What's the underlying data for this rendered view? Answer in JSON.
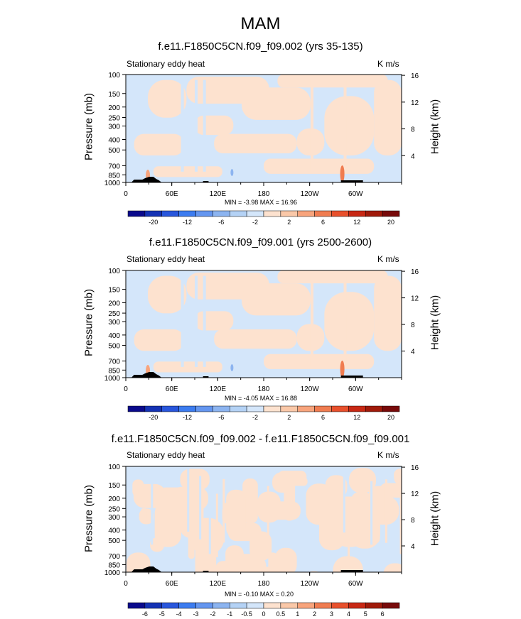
{
  "main_title": "MAM",
  "colors": {
    "neg_light": "#d4e6fa",
    "pos_light": "#fde2cf",
    "terrain": "#000000",
    "frame": "#000000"
  },
  "chart_data": [
    {
      "type": "heatmap",
      "title": "f.e11.F1850C5CN.f09_f09.002 (yrs 35-135)",
      "left_label": "Stationary eddy heat",
      "right_label": "K m/s",
      "ylabel": "Pressure (mb)",
      "ylabel_right": "Height (km)",
      "pressure_ticks": [
        "100",
        "150",
        "200",
        "250",
        "300",
        "400",
        "500",
        "700",
        "850",
        "1000"
      ],
      "height_ticks": [
        "4",
        "8",
        "12",
        "16"
      ],
      "x_ticks": [
        "0",
        "60E",
        "120E",
        "180",
        "120W",
        "60W"
      ],
      "stats_text": "MIN = -3.98  MAX = 16.96",
      "colorbar_labels": [
        "-20",
        "-12",
        "-6",
        "-2",
        "2",
        "6",
        "12",
        "20"
      ],
      "colorbar_colors": [
        "#0a0a8c",
        "#1432b4",
        "#2856dc",
        "#3c7cf0",
        "#6496f0",
        "#8cb4f0",
        "#b4d2f5",
        "#d4e6fa",
        "#fde2cf",
        "#fac8a8",
        "#f8a47c",
        "#f07c50",
        "#e8502c",
        "#c82814",
        "#a01a0a",
        "#780a0a"
      ],
      "value_range": [
        -3.98,
        16.96
      ]
    },
    {
      "type": "heatmap",
      "title": "f.e11.F1850C5CN.f09_f09.001 (yrs 2500-2600)",
      "left_label": "Stationary eddy heat",
      "right_label": "K m/s",
      "ylabel": "Pressure (mb)",
      "ylabel_right": "Height (km)",
      "pressure_ticks": [
        "100",
        "150",
        "200",
        "250",
        "300",
        "400",
        "500",
        "700",
        "850",
        "1000"
      ],
      "height_ticks": [
        "4",
        "8",
        "12",
        "16"
      ],
      "x_ticks": [
        "0",
        "60E",
        "120E",
        "180",
        "120W",
        "60W"
      ],
      "stats_text": "MIN = -4.05  MAX = 16.88",
      "colorbar_labels": [
        "-20",
        "-12",
        "-6",
        "-2",
        "2",
        "6",
        "12",
        "20"
      ],
      "colorbar_colors": [
        "#0a0a8c",
        "#1432b4",
        "#2856dc",
        "#3c7cf0",
        "#6496f0",
        "#8cb4f0",
        "#b4d2f5",
        "#d4e6fa",
        "#fde2cf",
        "#fac8a8",
        "#f8a47c",
        "#f07c50",
        "#e8502c",
        "#c82814",
        "#a01a0a",
        "#780a0a"
      ],
      "value_range": [
        -4.05,
        16.88
      ]
    },
    {
      "type": "heatmap",
      "title": "f.e11.F1850C5CN.f09_f09.002 - f.e11.F1850C5CN.f09_f09.001",
      "left_label": "Stationary eddy heat",
      "right_label": "K m/s",
      "ylabel": "Pressure (mb)",
      "ylabel_right": "Height (km)",
      "pressure_ticks": [
        "100",
        "150",
        "200",
        "250",
        "300",
        "400",
        "500",
        "700",
        "850",
        "1000"
      ],
      "height_ticks": [
        "4",
        "8",
        "12",
        "16"
      ],
      "x_ticks": [
        "0",
        "60E",
        "120E",
        "180",
        "120W",
        "60W"
      ],
      "stats_text": "MIN = -0.10  MAX =  0.20",
      "colorbar_labels": [
        "-6",
        "-5",
        "-4",
        "-3",
        "-2",
        "-1",
        "-0.5",
        "0",
        "0.5",
        "1",
        "2",
        "3",
        "4",
        "5",
        "6"
      ],
      "colorbar_colors": [
        "#0a0a8c",
        "#1432b4",
        "#2856dc",
        "#3c7cf0",
        "#6496f0",
        "#8cb4f0",
        "#b4d2f5",
        "#d4e6fa",
        "#fde2cf",
        "#fac8a8",
        "#f8a47c",
        "#f07c50",
        "#e8502c",
        "#c82814",
        "#a01a0a",
        "#780a0a"
      ],
      "value_range": [
        -0.1,
        0.2
      ]
    }
  ]
}
